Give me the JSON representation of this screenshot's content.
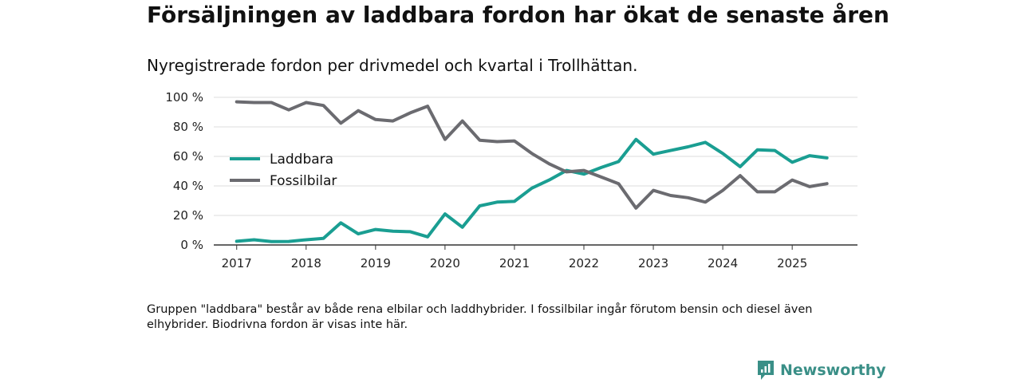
{
  "brand": {
    "name": "Newsworthy"
  },
  "chart_data": {
    "type": "line",
    "title": "Försäljningen av laddbara fordon har ökat de senaste åren",
    "subtitle": "Nyregistrerade fordon per drivmedel och kvartal i Trollhättan.",
    "footnote": "Gruppen \"laddbara\" består av både rena elbilar och laddhybrider. I fossilbilar ingår förutom bensin och diesel även elhybrider. Biodrivna fordon är visas inte här.",
    "x": [
      2017.0,
      2017.25,
      2017.5,
      2017.75,
      2018.0,
      2018.25,
      2018.5,
      2018.75,
      2019.0,
      2019.25,
      2019.5,
      2019.75,
      2020.0,
      2020.25,
      2020.5,
      2020.75,
      2021.0,
      2021.25,
      2021.5,
      2021.75,
      2022.0,
      2022.25,
      2022.5,
      2022.75,
      2023.0,
      2023.25,
      2023.5,
      2023.75,
      2024.0,
      2024.25,
      2024.5,
      2024.75,
      2025.0,
      2025.25,
      2025.5
    ],
    "series": [
      {
        "name": "Laddbara",
        "color": "#1a9e92",
        "values": [
          2.5,
          3.5,
          2.3,
          2.4,
          3.5,
          4.5,
          15,
          7.5,
          10.5,
          9.3,
          9.0,
          5.5,
          21,
          12,
          26.5,
          29,
          29.5,
          38.5,
          44,
          50.5,
          48,
          52.5,
          56.5,
          71.5,
          61.5,
          64,
          66.5,
          69.5,
          62,
          53,
          64.5,
          64,
          56,
          60.5,
          59
        ]
      },
      {
        "name": "Fossilbilar",
        "color": "#6b6b70",
        "values": [
          97,
          96.5,
          96.5,
          91.5,
          96.5,
          94.5,
          82.5,
          91,
          85,
          84,
          89.5,
          94,
          71.5,
          84,
          71,
          70,
          70.5,
          62,
          55,
          49.5,
          50.5,
          46,
          41.5,
          25,
          37,
          33.5,
          32,
          29,
          37,
          47,
          36,
          36,
          44,
          39.5,
          41.5
        ]
      }
    ],
    "ylim": [
      0,
      100
    ],
    "yticks": [
      0,
      20,
      40,
      60,
      80,
      100
    ],
    "ytick_labels": [
      "0 %",
      "20 %",
      "40 %",
      "60 %",
      "80 %",
      "100 %"
    ],
    "xticks": [
      2017,
      2018,
      2019,
      2020,
      2021,
      2022,
      2023,
      2024,
      2025
    ],
    "xtick_labels": [
      "2017",
      "2018",
      "2019",
      "2020",
      "2021",
      "2022",
      "2023",
      "2024",
      "2025"
    ],
    "xlim": [
      2016.67,
      2025.94
    ],
    "grid": true,
    "legend_position": "left"
  }
}
